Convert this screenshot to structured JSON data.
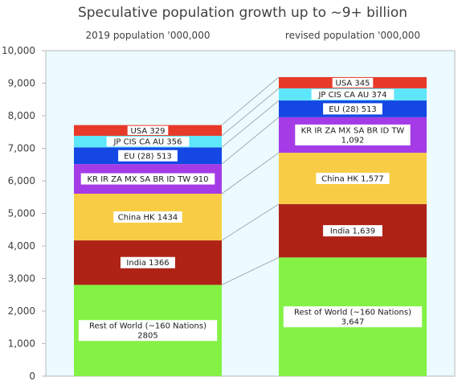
{
  "chart_data": {
    "type": "bar",
    "stacked": true,
    "title": "Speculative population growth up to ~9+ billion",
    "categories": [
      "2019 population  '000,000",
      "revised population  '000,000"
    ],
    "ylim": [
      0,
      10000
    ],
    "yticks": [
      "0",
      "1,000",
      "2,000",
      "3,000",
      "4,000",
      "5,000",
      "6,000",
      "7,000",
      "8,000",
      "9,000",
      "10,000"
    ],
    "ytick_values": [
      0,
      1000,
      2000,
      3000,
      4000,
      5000,
      6000,
      7000,
      8000,
      9000,
      10000
    ],
    "grid": false,
    "plot_background": "#ebfbff",
    "series": [
      {
        "key": "row",
        "color": "#83f244",
        "values": [
          2805,
          3647
        ],
        "labels": [
          [
            "Rest of World (~160 Nations)",
            "2805"
          ],
          [
            "Rest of World (~160 Nations)",
            "3,647"
          ]
        ]
      },
      {
        "key": "india",
        "color": "#ae2316",
        "values": [
          1366,
          1639
        ],
        "labels": [
          [
            "India 1366"
          ],
          [
            "India 1,639"
          ]
        ]
      },
      {
        "key": "china",
        "color": "#f8cd45",
        "values": [
          1434,
          1577
        ],
        "labels": [
          [
            "China HK 1434"
          ],
          [
            "China HK 1,577"
          ]
        ]
      },
      {
        "key": "kr",
        "color": "#a53be6",
        "values": [
          910,
          1092
        ],
        "labels": [
          [
            "KR IR ZA MX SA BR ID TW 910"
          ],
          [
            "KR IR ZA MX SA BR ID TW",
            "1,092"
          ]
        ]
      },
      {
        "key": "eu",
        "color": "#1447e3",
        "values": [
          513,
          513
        ],
        "labels": [
          [
            "EU (28) 513"
          ],
          [
            "EU (28) 513"
          ]
        ]
      },
      {
        "key": "jp",
        "color": "#5ee6fa",
        "values": [
          356,
          374
        ],
        "labels": [
          [
            "JP CIS CA AU 356"
          ],
          [
            "JP CIS CA AU 374"
          ]
        ]
      },
      {
        "key": "usa",
        "color": "#e73a28",
        "values": [
          329,
          345
        ],
        "labels": [
          [
            "USA 329"
          ],
          [
            "USA 345"
          ]
        ]
      }
    ]
  }
}
